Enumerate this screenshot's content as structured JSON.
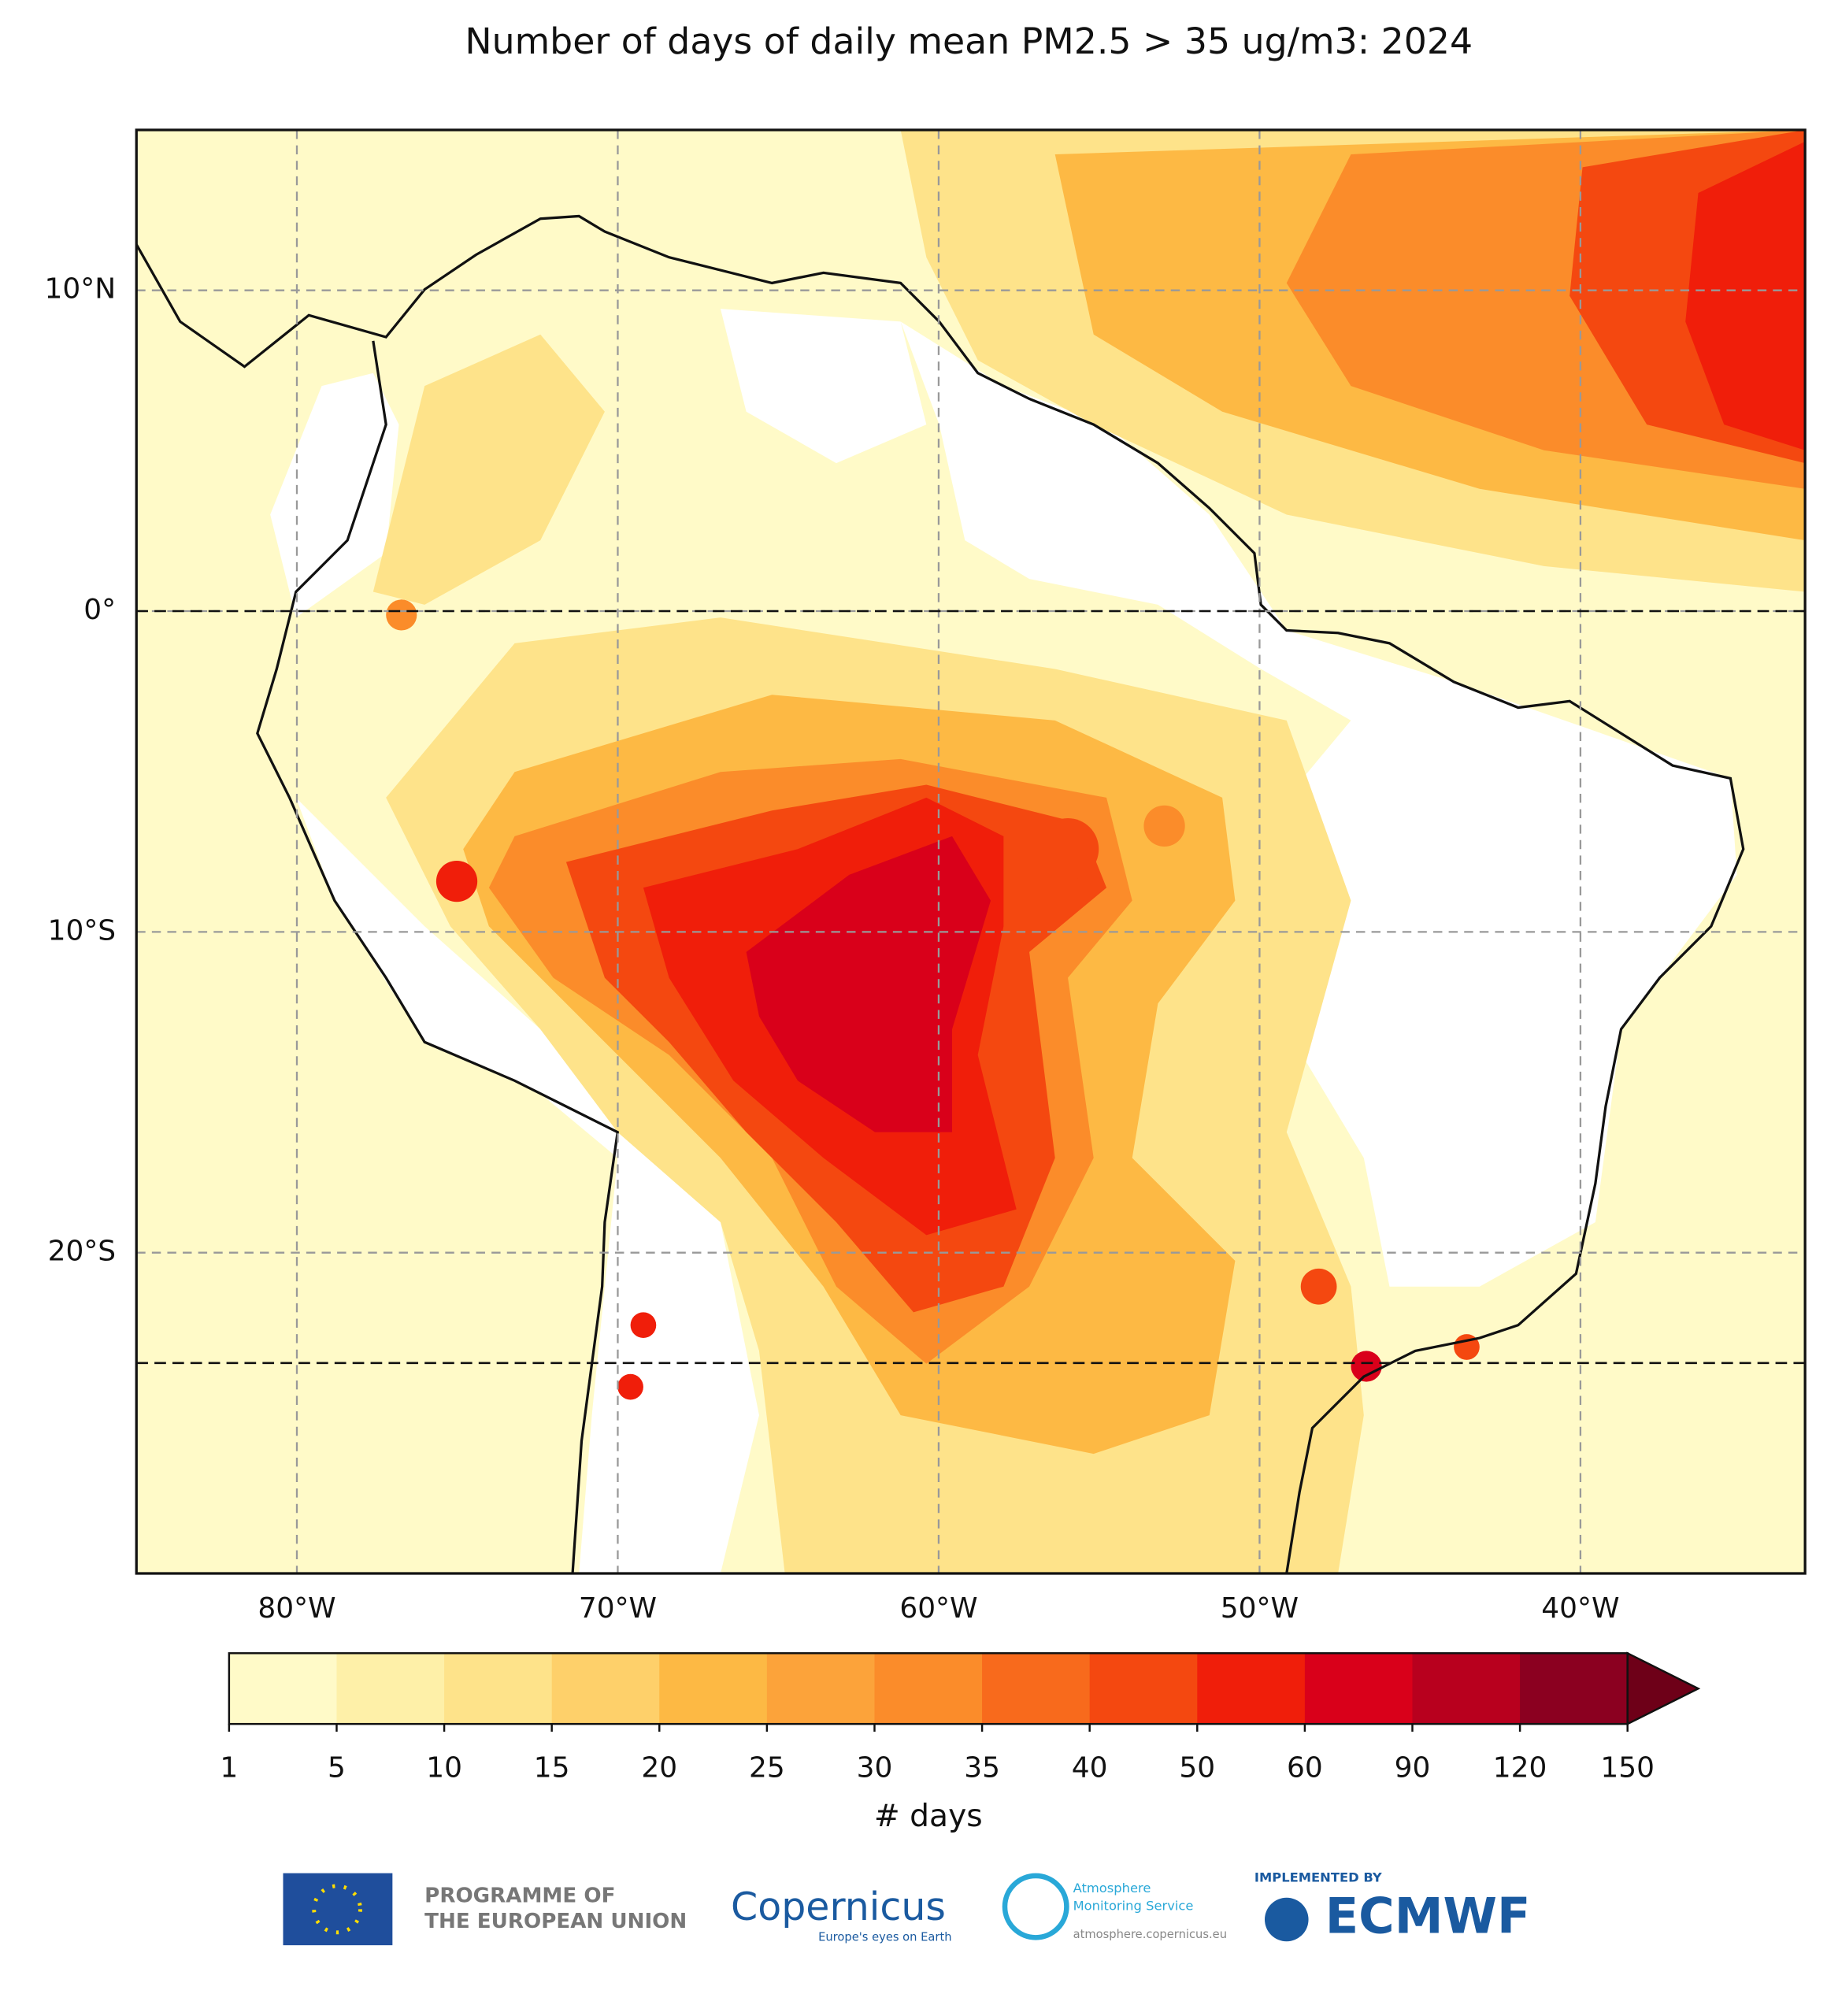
{
  "chart_data": {
    "type": "map",
    "title": "Number of days of daily mean PM2.5 > 35 ug/m3: 2024",
    "xlim": [
      -85,
      -33
    ],
    "ylim": [
      -30,
      15
    ],
    "xticks": [
      {
        "value": -80,
        "label": "80°W"
      },
      {
        "value": -70,
        "label": "70°W"
      },
      {
        "value": -60,
        "label": "60°W"
      },
      {
        "value": -50,
        "label": "50°W"
      },
      {
        "value": -40,
        "label": "40°W"
      }
    ],
    "yticks": [
      {
        "value": 10,
        "label": "10°N"
      },
      {
        "value": 0,
        "label": "0°"
      },
      {
        "value": -10,
        "label": "10°S"
      },
      {
        "value": -20,
        "label": "20°S"
      }
    ],
    "grid": true,
    "reference_lats": [
      0,
      -23.44
    ],
    "colorbar": {
      "label": "# days",
      "bounds": [
        1,
        5,
        10,
        15,
        20,
        25,
        30,
        35,
        40,
        50,
        60,
        90,
        120,
        150
      ],
      "colors": [
        "#fffac8",
        "#fef0a8",
        "#fee38a",
        "#fed06a",
        "#fdb944",
        "#fca33a",
        "#fb8c2a",
        "#f86a1c",
        "#f44810",
        "#f01e0a",
        "#d9001a",
        "#b8001e",
        "#8b0020"
      ],
      "extend_color": "#6e0018"
    }
  },
  "footer": {
    "eu": [
      "PROGRAMME OF",
      "THE EUROPEAN UNION"
    ],
    "copernicus": "Copernicus",
    "copernicus_tagline": "Europe's eyes on Earth",
    "cams": [
      "Atmosphere",
      "Monitoring Service"
    ],
    "cams_url": "atmosphere.copernicus.eu",
    "implemented": "IMPLEMENTED BY",
    "ecmwf": "ECMWF"
  }
}
